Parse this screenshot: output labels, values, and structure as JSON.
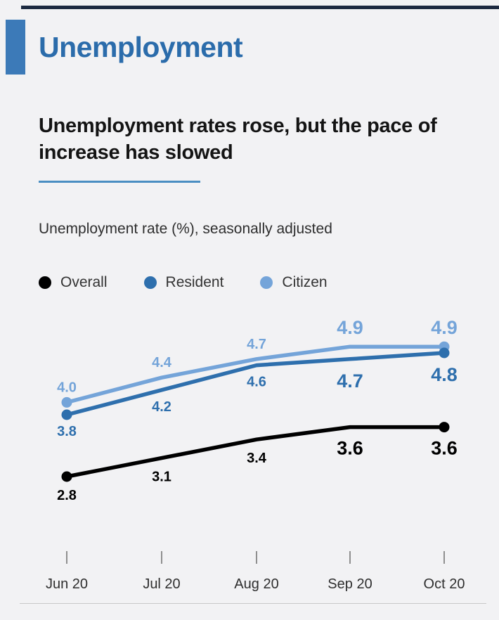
{
  "header": {
    "section_title": "Unemployment"
  },
  "headline": {
    "text": "Unemployment rates rose, but the pace of increase has slowed"
  },
  "chart_subtitle": "Unemployment rate (%), seasonally adjusted",
  "legend": [
    {
      "label": "Overall",
      "color": "#000000"
    },
    {
      "label": "Resident",
      "color": "#2e6fad"
    },
    {
      "label": "Citizen",
      "color": "#74a4d9"
    }
  ],
  "colors": {
    "background": "#f2f2f4",
    "top_bar": "#1c2940",
    "accent_block": "#3c7ab8",
    "section_title": "#2b6cab",
    "headline_underline": "#4a8ec2",
    "axis": "#8f8f8f"
  },
  "chart_data": {
    "type": "line",
    "title": "Unemployment rate (%), seasonally adjusted",
    "categories": [
      "Jun 20",
      "Jul 20",
      "Aug 20",
      "Sep 20",
      "Oct 20"
    ],
    "series": [
      {
        "name": "Overall",
        "color": "#000000",
        "values": [
          2.8,
          3.1,
          3.4,
          3.6,
          3.6
        ]
      },
      {
        "name": "Resident",
        "color": "#2e6fad",
        "values": [
          3.8,
          4.2,
          4.6,
          4.7,
          4.8
        ]
      },
      {
        "name": "Citizen",
        "color": "#74a4d9",
        "values": [
          4.0,
          4.4,
          4.7,
          4.9,
          4.9
        ]
      }
    ],
    "xlabel": "",
    "ylabel": "Unemployment rate (%)",
    "ylim": [
      2.5,
      5.2
    ],
    "grid": false,
    "legend_position": "top",
    "data_labels": true,
    "emphasized_columns": [
      3,
      4
    ]
  }
}
